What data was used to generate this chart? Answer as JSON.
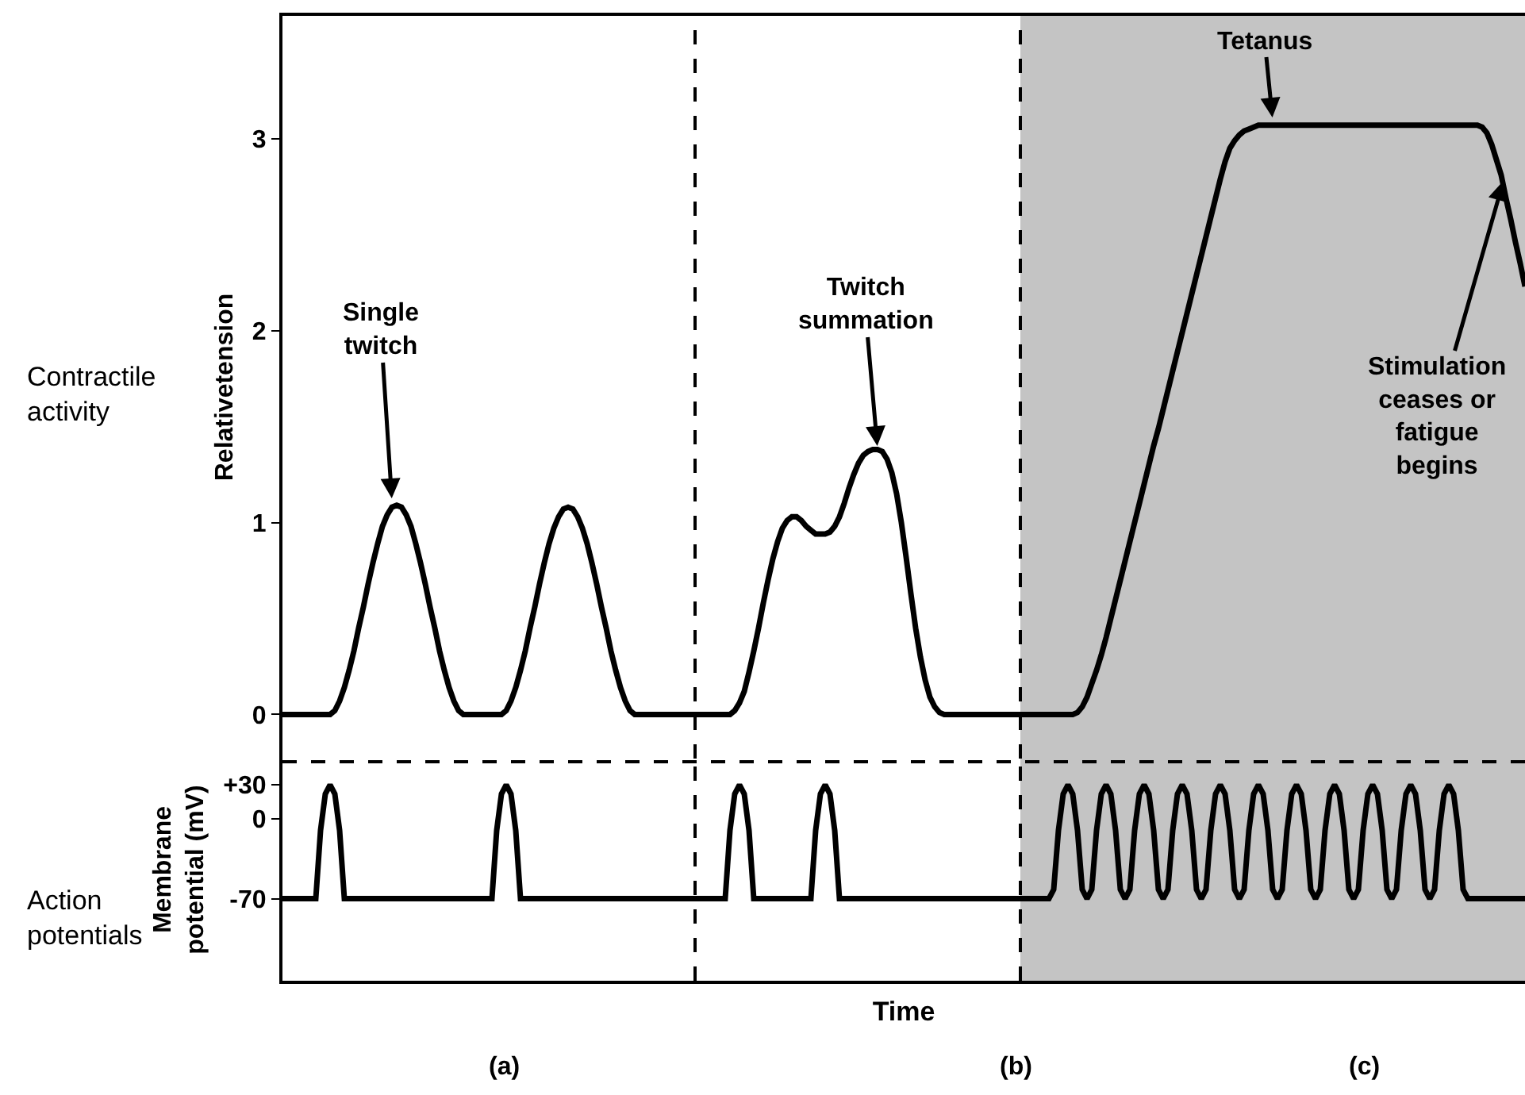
{
  "chart_data": [
    {
      "type": "line",
      "ylabel": "Relativetension",
      "ylim": [
        -0.23,
        3.64
      ],
      "yticks": [
        0,
        1,
        2,
        3
      ],
      "tick_labels": "y",
      "annotations": [
        "Contractile\nactivity",
        "Single\ntwitch",
        "Twitch\nsummation",
        "Tetanus",
        "Stimulation\nceases or\nfatigue\nbegins"
      ],
      "categories": [
        null,
        null,
        null,
        null,
        null,
        null,
        null,
        null,
        null,
        null,
        null,
        null,
        null,
        null,
        null,
        null,
        null,
        null,
        null,
        null,
        null,
        null,
        null,
        null,
        null,
        null,
        null,
        null,
        null,
        null,
        null,
        null,
        null,
        null,
        null,
        null,
        null,
        null,
        null,
        null,
        null,
        null,
        null,
        null,
        null,
        null,
        null,
        null,
        null,
        null,
        null,
        null,
        null,
        null,
        null,
        null,
        null,
        null,
        null,
        null,
        null,
        null,
        null,
        null,
        null,
        null,
        null,
        null,
        null,
        null,
        null,
        null,
        null,
        null,
        null,
        null,
        null,
        null,
        null,
        null,
        null,
        null,
        null,
        null,
        null,
        null,
        null,
        null,
        null,
        null,
        null,
        null,
        null,
        null,
        null,
        null,
        null,
        null,
        null,
        null,
        null,
        null,
        null,
        null,
        null,
        null,
        null,
        null,
        null,
        null,
        null,
        null,
        null,
        null,
        null,
        null,
        null,
        null,
        null,
        null,
        null,
        null,
        null,
        null,
        null,
        null,
        null,
        null,
        null,
        null,
        null,
        null,
        null,
        null,
        null,
        null,
        null,
        null,
        null,
        null,
        null,
        null,
        null,
        null,
        null,
        null,
        null,
        null,
        null,
        null,
        null,
        null,
        null,
        null,
        null,
        null,
        null,
        null,
        null,
        null,
        null,
        null,
        null,
        null,
        null,
        null,
        null,
        null,
        null,
        null,
        null,
        null,
        null,
        null,
        null,
        null,
        null,
        null,
        null,
        null,
        null,
        null,
        null,
        null,
        null,
        null,
        null,
        null,
        null,
        null,
        null,
        null,
        null,
        null,
        null,
        null,
        null,
        null,
        null,
        null,
        null,
        null,
        null,
        null,
        null,
        null,
        null,
        null,
        null,
        null,
        null,
        null,
        null,
        null,
        null,
        null,
        null,
        null,
        null,
        null,
        null,
        null,
        null,
        null,
        null,
        null,
        null,
        null,
        null,
        null,
        null,
        null,
        null,
        null,
        null,
        null,
        null,
        null,
        null,
        null,
        null,
        null,
        null,
        null,
        null,
        null,
        null,
        null,
        null,
        null,
        null,
        null,
        null,
        null,
        null,
        null,
        null,
        null,
        null,
        null,
        null,
        null
      ],
      "series": [
        {
          "color": "#000000",
          "values": [
            0,
            0,
            0,
            0,
            0,
            0,
            0,
            0,
            0,
            0,
            0,
            0.02,
            0.07,
            0.14,
            0.23,
            0.33,
            0.45,
            0.56,
            0.68,
            0.79,
            0.89,
            0.98,
            1.04,
            1.08,
            1.09,
            1.08,
            1.04,
            0.98,
            0.89,
            0.79,
            0.68,
            0.56,
            0.45,
            0.33,
            0.23,
            0.14,
            0.07,
            0.02,
            0,
            0,
            0,
            0,
            0,
            0,
            0,
            0,
            0,
            0.02,
            0.07,
            0.14,
            0.23,
            0.33,
            0.45,
            0.56,
            0.68,
            0.79,
            0.89,
            0.97,
            1.03,
            1.07,
            1.08,
            1.07,
            1.03,
            0.97,
            0.89,
            0.79,
            0.68,
            0.56,
            0.45,
            0.33,
            0.23,
            0.14,
            0.07,
            0.02,
            0,
            0,
            0,
            0,
            0,
            0,
            0,
            0,
            0,
            0,
            0,
            0,
            0,
            0,
            0,
            0,
            0,
            0,
            0,
            0,
            0,
            0.02,
            0.06,
            0.12,
            0.22,
            0.33,
            0.45,
            0.58,
            0.7,
            0.81,
            0.9,
            0.97,
            1.01,
            1.03,
            1.03,
            1.01,
            0.98,
            0.96,
            0.94,
            0.94,
            0.94,
            0.95,
            0.98,
            1.03,
            1.1,
            1.18,
            1.25,
            1.31,
            1.35,
            1.37,
            1.38,
            1.38,
            1.37,
            1.33,
            1.26,
            1.15,
            1,
            0.82,
            0.63,
            0.45,
            0.3,
            0.18,
            0.09,
            0.04,
            0.01,
            0,
            0,
            0,
            0,
            0,
            0,
            0,
            0,
            0,
            0,
            0,
            0,
            0,
            0,
            0,
            0,
            0,
            0,
            0,
            0,
            0,
            0,
            0,
            0,
            0,
            0,
            0,
            0,
            0.01,
            0.04,
            0.09,
            0.16,
            0.23,
            0.31,
            0.4,
            0.5,
            0.6,
            0.7,
            0.8,
            0.9,
            1,
            1.1,
            1.2,
            1.3,
            1.4,
            1.49,
            1.59,
            1.69,
            1.79,
            1.89,
            1.99,
            2.09,
            2.19,
            2.29,
            2.39,
            2.49,
            2.59,
            2.69,
            2.79,
            2.88,
            2.95,
            2.99,
            3.02,
            3.04,
            3.05,
            3.06,
            3.07,
            3.07,
            3.07,
            3.07,
            3.07,
            3.07,
            3.07,
            3.07,
            3.07,
            3.07,
            3.07,
            3.07,
            3.07,
            3.07,
            3.07,
            3.07,
            3.07,
            3.07,
            3.07,
            3.07,
            3.07,
            3.07,
            3.07,
            3.07,
            3.07,
            3.07,
            3.07,
            3.07,
            3.07,
            3.07,
            3.07,
            3.07,
            3.07,
            3.07,
            3.07,
            3.07,
            3.07,
            3.07,
            3.07,
            3.07,
            3.07,
            3.07,
            3.07,
            3.07,
            3.07,
            3.07,
            3.07,
            3.06,
            3.03,
            2.97,
            2.89,
            2.81,
            2.69,
            2.58,
            2.46,
            2.35,
            2.23
          ]
        }
      ]
    },
    {
      "type": "line",
      "xlabel": "Time",
      "ylabel": "Membrane\npotential (mV)",
      "ylim": [
        -142,
        53
      ],
      "yticks": [
        {
          "value": 30,
          "label": "+30"
        },
        0,
        -70
      ],
      "tick_labels": "y",
      "annotations": [
        "Action\npotentials",
        "(a)",
        "(b)",
        "(c)"
      ],
      "categories": [
        null,
        null,
        null,
        null,
        null,
        null,
        null,
        null,
        null,
        null,
        null,
        null,
        null,
        null,
        null,
        null,
        null,
        null,
        null,
        null,
        null,
        null,
        null,
        null,
        null,
        null,
        null,
        null,
        null,
        null,
        null,
        null,
        null,
        null,
        null,
        null,
        null,
        null,
        null,
        null,
        null,
        null,
        null,
        null,
        null,
        null,
        null,
        null,
        null,
        null,
        null,
        null,
        null,
        null,
        null,
        null,
        null,
        null,
        null,
        null,
        null,
        null,
        null,
        null,
        null,
        null,
        null,
        null,
        null,
        null,
        null,
        null,
        null,
        null,
        null,
        null,
        null,
        null,
        null,
        null,
        null,
        null,
        null,
        null,
        null,
        null,
        null,
        null,
        null,
        null,
        null,
        null,
        null,
        null,
        null,
        null,
        null,
        null,
        null,
        null,
        null,
        null,
        null,
        null,
        null,
        null,
        null,
        null,
        null,
        null,
        null,
        null,
        null,
        null,
        null,
        null,
        null,
        null,
        null,
        null,
        null,
        null,
        null,
        null,
        null,
        null,
        null,
        null,
        null,
        null,
        null,
        null,
        null,
        null,
        null,
        null,
        null,
        null,
        null,
        null,
        null,
        null,
        null,
        null,
        null,
        null,
        null,
        null,
        null,
        null,
        null,
        null,
        null,
        null,
        null,
        null,
        null,
        null,
        null,
        null,
        null,
        null,
        null,
        null,
        null,
        null,
        null,
        null,
        null,
        null,
        null,
        null,
        null,
        null,
        null,
        null,
        null,
        null,
        null,
        null,
        null,
        null,
        null,
        null,
        null,
        null,
        null,
        null,
        null,
        null,
        null,
        null,
        null,
        null,
        null,
        null,
        null,
        null,
        null,
        null,
        null,
        null,
        null,
        null,
        null,
        null,
        null,
        null,
        null,
        null,
        null,
        null,
        null,
        null,
        null,
        null,
        null,
        null,
        null,
        null,
        null,
        null,
        null,
        null,
        null,
        null,
        null,
        null,
        null,
        null,
        null,
        null,
        null,
        null,
        null,
        null,
        null,
        null,
        null,
        null,
        null,
        null,
        null,
        null,
        null,
        null,
        null,
        null,
        null,
        null,
        null,
        null,
        null,
        null,
        null,
        null,
        null,
        null,
        null,
        null,
        null,
        null
      ],
      "series": [
        {
          "color": "#000000",
          "values": [
            -70,
            -70,
            -70,
            -70,
            -70,
            -70,
            -70,
            -70,
            -10,
            22,
            30,
            22,
            -10,
            -70,
            -70,
            -70,
            -70,
            -70,
            -70,
            -70,
            -70,
            -70,
            -70,
            -70,
            -70,
            -70,
            -70,
            -70,
            -70,
            -70,
            -70,
            -70,
            -70,
            -70,
            -70,
            -70,
            -70,
            -70,
            -70,
            -70,
            -70,
            -70,
            -70,
            -70,
            -70,
            -10,
            22,
            30,
            22,
            -10,
            -70,
            -70,
            -70,
            -70,
            -70,
            -70,
            -70,
            -70,
            -70,
            -70,
            -70,
            -70,
            -70,
            -70,
            -70,
            -70,
            -70,
            -70,
            -70,
            -70,
            -70,
            -70,
            -70,
            -70,
            -70,
            -70,
            -70,
            -70,
            -70,
            -70,
            -70,
            -70,
            -70,
            -70,
            -70,
            -70,
            -70,
            -70,
            -70,
            -70,
            -70,
            -70,
            -70,
            -70,
            -10,
            22,
            30,
            22,
            -10,
            -70,
            -70,
            -70,
            -70,
            -70,
            -70,
            -70,
            -70,
            -70,
            -70,
            -70,
            -70,
            -70,
            -10,
            22,
            30,
            22,
            -10,
            -70,
            -70,
            -70,
            -70,
            -70,
            -70,
            -70,
            -70,
            -70,
            -70,
            -70,
            -70,
            -70,
            -70,
            -70,
            -70,
            -70,
            -70,
            -70,
            -70,
            -70,
            -70,
            -70,
            -70,
            -70,
            -70,
            -70,
            -70,
            -70,
            -70,
            -70,
            -70,
            -70,
            -70,
            -70,
            -70,
            -70,
            -70,
            -70,
            -70,
            -70,
            -70,
            -70,
            -70,
            -70,
            -62,
            -10,
            22,
            30,
            22,
            -10,
            -62,
            -70,
            -62,
            -10,
            22,
            30,
            22,
            -10,
            -62,
            -70,
            -62,
            -10,
            22,
            30,
            22,
            -10,
            -62,
            -70,
            -62,
            -10,
            22,
            30,
            22,
            -10,
            -62,
            -70,
            -62,
            -10,
            22,
            30,
            22,
            -10,
            -62,
            -70,
            -62,
            -10,
            22,
            30,
            22,
            -10,
            -62,
            -70,
            -62,
            -10,
            22,
            30,
            22,
            -10,
            -62,
            -70,
            -62,
            -10,
            22,
            30,
            22,
            -10,
            -62,
            -70,
            -62,
            -10,
            22,
            30,
            22,
            -10,
            -62,
            -70,
            -62,
            -10,
            22,
            30,
            22,
            -10,
            -62,
            -70,
            -62,
            -10,
            22,
            30,
            22,
            -10,
            -62,
            -70,
            -70,
            -70,
            -70,
            -70,
            -70,
            -70,
            -70,
            -70,
            -70,
            -70,
            -70,
            -70
          ]
        }
      ]
    }
  ]
}
